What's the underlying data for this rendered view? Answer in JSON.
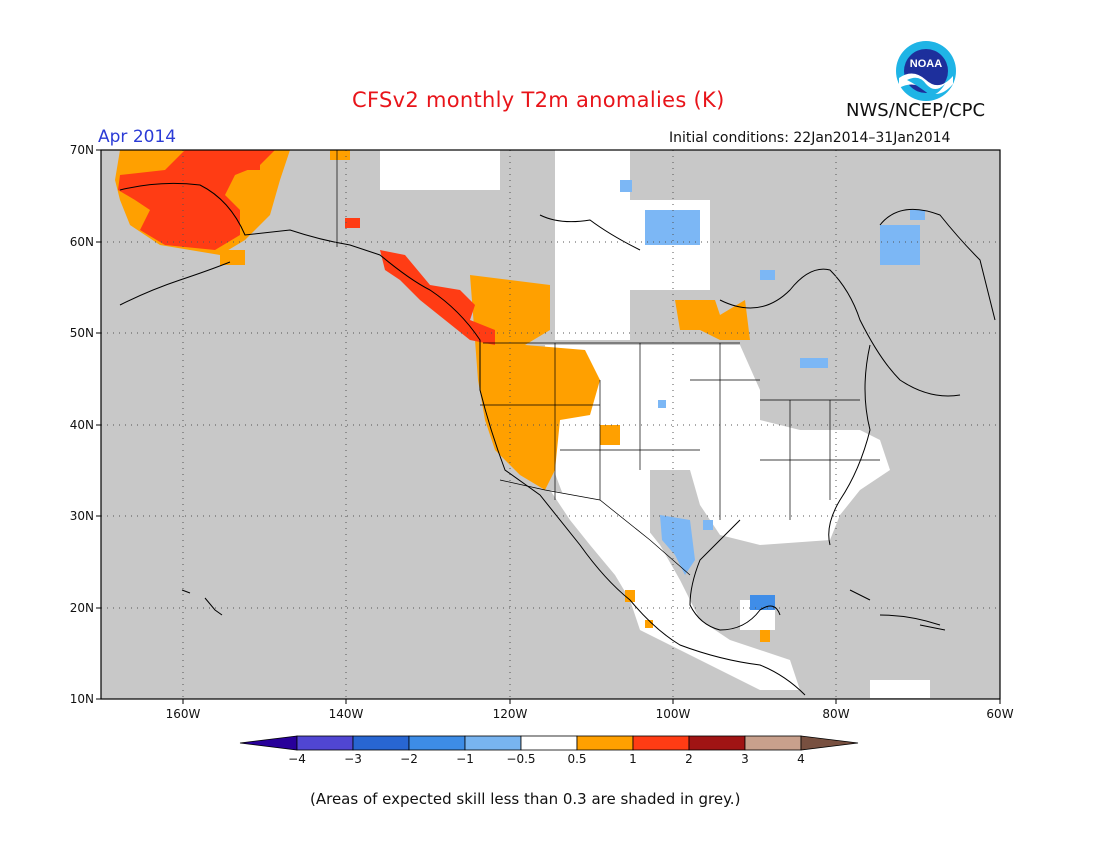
{
  "header": {
    "title": "CFSv2 monthly T2m anomalies (K)",
    "org": "NWS/NCEP/CPC",
    "month": "Apr 2014",
    "initial_conditions": "Initial conditions: 22Jan2014–31Jan2014",
    "logo_text": "NOAA"
  },
  "map": {
    "lat_labels": [
      "70N",
      "60N",
      "50N",
      "40N",
      "30N",
      "20N",
      "10N"
    ],
    "lon_labels": [
      "160W",
      "140W",
      "120W",
      "100W",
      "80W",
      "60W"
    ],
    "extent": {
      "lon_min": -172,
      "lon_max": -60,
      "lat_min": 10,
      "lat_max": 70
    },
    "colors": {
      "grey_low_skill": "#c8c8c8",
      "white": "#ffffff",
      "orange": "#ffa000",
      "red_orange": "#ff3c14",
      "light_blue": "#7cb7f5",
      "blue": "#3f8de8",
      "coast": "#000000",
      "grid": "#555555"
    }
  },
  "colorbar": {
    "labels": [
      "−4",
      "−3",
      "−2",
      "−1",
      "−0.5",
      "0.5",
      "1",
      "2",
      "3",
      "4"
    ],
    "colors": [
      "#28009a",
      "#5046d2",
      "#2866d2",
      "#3d8ce6",
      "#78b4f0",
      "#ffffff",
      "#ffa000",
      "#ff3c14",
      "#a01414",
      "#c8a08c",
      "#785040"
    ]
  },
  "footer": {
    "note": "(Areas of expected skill less than 0.3 are shaded in grey.)"
  }
}
